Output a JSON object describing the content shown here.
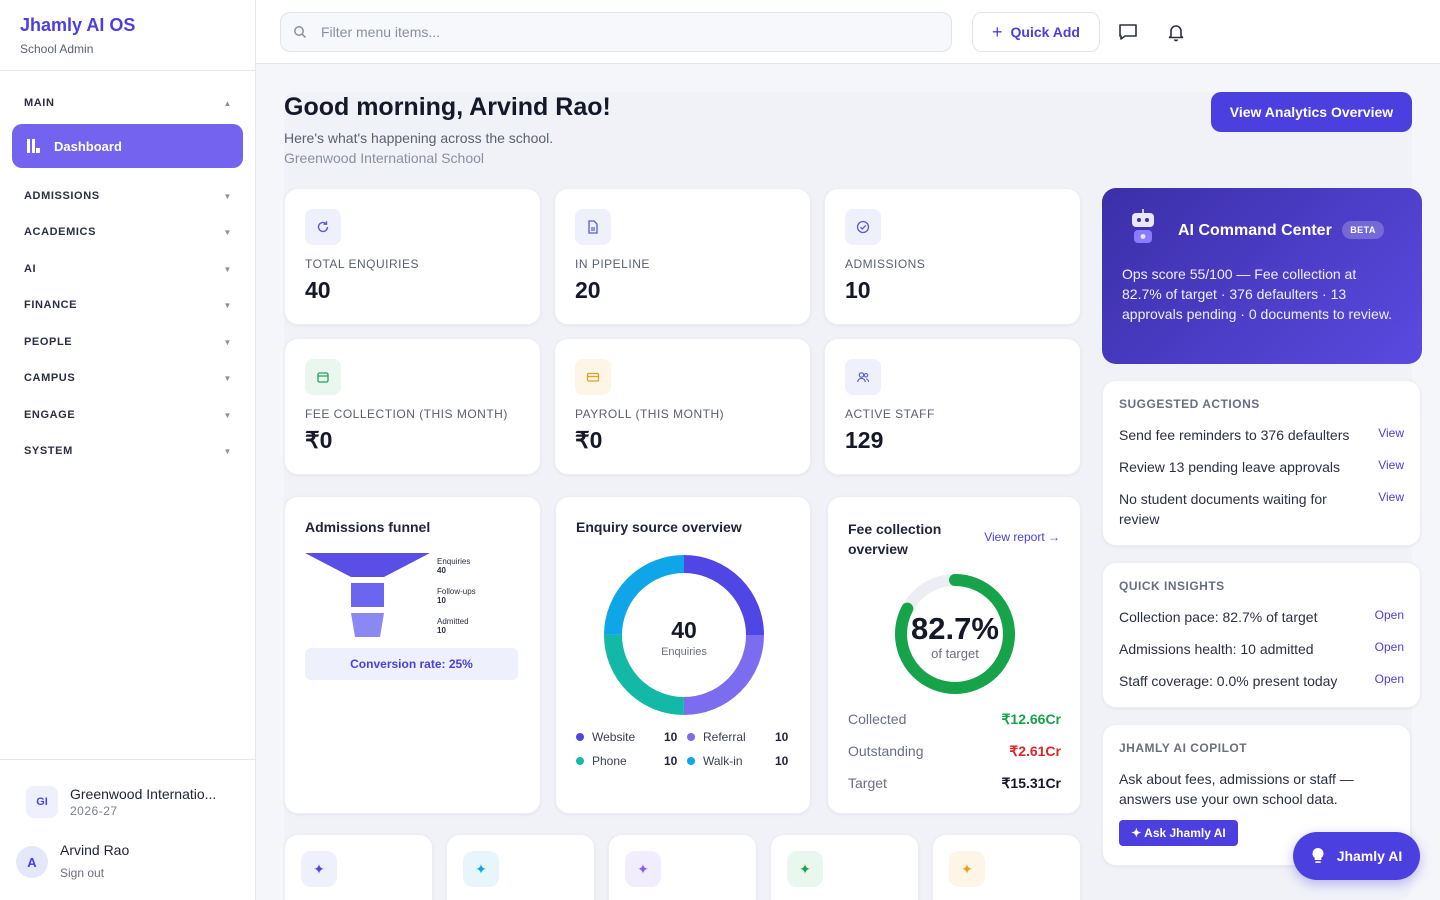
{
  "brand": {
    "title": "Jhamly AI OS",
    "subtitle": "School Admin"
  },
  "sidebar": {
    "main_label": "MAIN",
    "active_item": "Dashboard",
    "sections": [
      "ADMISSIONS",
      "ACADEMICS",
      "AI",
      "FINANCE",
      "PEOPLE",
      "CAMPUS",
      "ENGAGE",
      "SYSTEM"
    ],
    "school": {
      "badge": "GI",
      "name": "Greenwood Internatio...",
      "year": "2026-27"
    },
    "user": {
      "initial": "A",
      "name": "Arvind Rao",
      "action": "Sign out"
    }
  },
  "topbar": {
    "search_placeholder": "Filter menu items...",
    "quick_add_label": "Quick Add",
    "icons": [
      "message-icon",
      "bell-icon"
    ]
  },
  "header": {
    "greeting": "Good morning, Arvind Rao!",
    "subtitle": "Here's what's happening across the school.",
    "school": "Greenwood International School",
    "analytics_button": "View Analytics Overview"
  },
  "stats": [
    {
      "label": "TOTAL ENQUIRIES",
      "value": "40",
      "icon": "refresh-icon",
      "color": "#5b5bd6"
    },
    {
      "label": "IN PIPELINE",
      "value": "20",
      "icon": "document-icon",
      "color": "#5b5bd6"
    },
    {
      "label": "ADMISSIONS",
      "value": "10",
      "icon": "check-circle-icon",
      "color": "#5b5bd6"
    },
    {
      "label": "FEE COLLECTION (THIS MONTH)",
      "value": "₹0",
      "icon": "wallet-icon",
      "color": "#22a35a"
    },
    {
      "label": "PAYROLL (THIS MONTH)",
      "value": "₹0",
      "icon": "card-icon",
      "color": "#e0a020"
    },
    {
      "label": "ACTIVE STAFF",
      "value": "129",
      "icon": "users-icon",
      "color": "#5b5bd6"
    }
  ],
  "funnel": {
    "title": "Admissions funnel",
    "stages": [
      {
        "label": "Enquiries",
        "value": "40"
      },
      {
        "label": "Follow-ups",
        "value": "10"
      },
      {
        "label": "Admitted",
        "value": "10"
      }
    ],
    "conversion": "Conversion rate: 25%"
  },
  "enquiry_source": {
    "title": "Enquiry source overview",
    "center_value": "40",
    "center_label": "Enquiries",
    "sources": [
      {
        "name": "Website",
        "value": "10",
        "color": "#4f46e5"
      },
      {
        "name": "Referral",
        "value": "10",
        "color": "#7c6cf0"
      },
      {
        "name": "Phone",
        "value": "10",
        "color": "#14b8a6"
      },
      {
        "name": "Walk-in",
        "value": "10",
        "color": "#0ea5e9"
      }
    ]
  },
  "fee_overview": {
    "title_line1": "Fee collection",
    "title_line2": "overview",
    "link": "View report →",
    "percent": "82.7%",
    "percent_value": 82.7,
    "percent_label": "of target",
    "rows": [
      {
        "label": "Collected",
        "value": "₹12.66Cr",
        "color": "#16a34a"
      },
      {
        "label": "Outstanding",
        "value": "₹2.61Cr",
        "color": "#dc2626"
      },
      {
        "label": "Target",
        "value": "₹15.31Cr",
        "color": "#141828"
      }
    ]
  },
  "ai_command": {
    "title": "AI Command Center",
    "badge": "BETA",
    "body": "Ops score 55/100 — Fee collection at 82.7% of target · 376 defaulters · 13 approvals pending · 0 documents to review."
  },
  "suggested_actions": {
    "heading": "SUGGESTED ACTIONS",
    "items": [
      {
        "text": "Send fee reminders to 376 defaulters",
        "link": "View"
      },
      {
        "text": "Review 13 pending leave approvals",
        "link": "View"
      },
      {
        "text": "No student documents waiting for review",
        "link": "View"
      }
    ]
  },
  "quick_insights": {
    "heading": "QUICK INSIGHTS",
    "items": [
      {
        "text": "Collection pace: 82.7% of target",
        "link": "Open"
      },
      {
        "text": "Admissions health: 10 admitted",
        "link": "Open"
      },
      {
        "text": "Staff coverage: 0.0% present today",
        "link": "Open"
      }
    ]
  },
  "copilot": {
    "heading": "JHAMLY AI COPILOT",
    "body": "Ask about fees, admissions or staff — answers use your own school data.",
    "button": "✦ Ask Jhamly AI"
  },
  "fab_label": "Jhamly AI",
  "mini_cards": [
    {
      "icon": "sparkle-icon",
      "color": "#4f46e5",
      "bg": "#eef0fb"
    },
    {
      "icon": "sparkle-icon",
      "color": "#0ea5e9",
      "bg": "#e8f6fc"
    },
    {
      "icon": "sparkle-icon",
      "color": "#8b5cf6",
      "bg": "#f1edfd"
    },
    {
      "icon": "sparkle-icon",
      "color": "#16a34a",
      "bg": "#e9f7ee"
    },
    {
      "icon": "sparkle-icon",
      "color": "#f59e0b",
      "bg": "#fdf5e6"
    }
  ]
}
